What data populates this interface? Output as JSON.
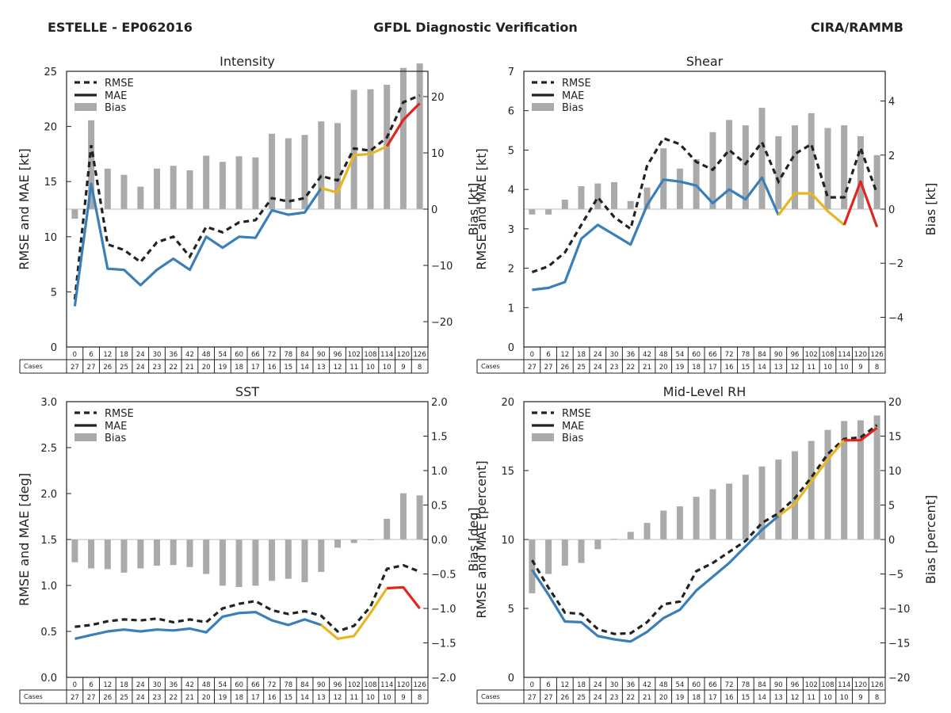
{
  "header": {
    "storm": "ESTELLE - EP062016",
    "title": "GFDL Diagnostic Verification",
    "org": "CIRA/RAMMB"
  },
  "colors": {
    "rmse": "#222222",
    "mae_early": "#3a7fb8",
    "mae_mid": "#e8b622",
    "mae_late": "#e0251f",
    "bias": "#aaaaaa"
  },
  "legend": {
    "rmse": "RMSE",
    "mae": "MAE",
    "bias": "Bias"
  },
  "table": {
    "cases_label": "Cases",
    "hours": [
      "0",
      "6",
      "12",
      "18",
      "24",
      "30",
      "36",
      "42",
      "48",
      "54",
      "60",
      "66",
      "72",
      "78",
      "84",
      "90",
      "96",
      "102",
      "108",
      "114",
      "120",
      "126"
    ],
    "cases": [
      "27",
      "27",
      "26",
      "25",
      "24",
      "23",
      "22",
      "21",
      "20",
      "19",
      "18",
      "17",
      "16",
      "15",
      "14",
      "13",
      "12",
      "11",
      "10",
      "10",
      "9",
      "8"
    ]
  },
  "chart_data": [
    {
      "type": "line+bar",
      "title": "Intensity",
      "ylabel": "RMSE and MAE [kt]",
      "ylabel2": "Bias [kt]",
      "ylim": [
        0,
        25
      ],
      "yticks": [
        "0",
        "5",
        "10",
        "15",
        "20",
        "25"
      ],
      "y2lim": [
        -24.5,
        24.5
      ],
      "y2ticks": [
        "−20",
        "−10",
        "0",
        "10",
        "20"
      ],
      "x": [
        0,
        6,
        12,
        18,
        24,
        30,
        36,
        42,
        48,
        54,
        60,
        66,
        72,
        78,
        84,
        90,
        96,
        102,
        108,
        114,
        120,
        126
      ],
      "rmse": [
        4.3,
        18.3,
        9.3,
        8.8,
        7.7,
        9.5,
        10.0,
        8.2,
        10.9,
        10.4,
        11.3,
        11.5,
        13.5,
        13.2,
        13.5,
        15.5,
        15.1,
        18.0,
        17.8,
        19.0,
        22.2,
        22.8
      ],
      "mae": [
        3.7,
        14.8,
        7.1,
        7.0,
        5.6,
        7.0,
        8.0,
        7.0,
        10.0,
        9.0,
        10.0,
        9.9,
        12.4,
        12.0,
        12.2,
        14.4,
        14.0,
        17.4,
        17.5,
        18.2,
        20.6,
        22.1
      ],
      "bias": [
        -1.7,
        15.8,
        7.2,
        6.1,
        4.0,
        7.2,
        7.7,
        6.9,
        9.5,
        8.4,
        9.4,
        9.2,
        13.4,
        12.6,
        13.2,
        15.6,
        15.3,
        21.2,
        21.3,
        22.1,
        25.1,
        25.9
      ]
    },
    {
      "type": "line+bar",
      "title": "Shear",
      "ylabel": "RMSE and MAE [kt]",
      "ylabel2": "Bias [kt]",
      "ylim": [
        0,
        7
      ],
      "yticks": [
        "0",
        "1",
        "2",
        "3",
        "4",
        "5",
        "6",
        "7"
      ],
      "y2lim": [
        -5.1,
        5.1
      ],
      "y2ticks": [
        "−4",
        "−2",
        "0",
        "2",
        "4"
      ],
      "x": [
        0,
        6,
        12,
        18,
        24,
        30,
        36,
        42,
        48,
        54,
        60,
        66,
        72,
        78,
        84,
        90,
        96,
        102,
        108,
        114,
        120,
        126
      ],
      "rmse": [
        1.9,
        2.05,
        2.4,
        3.1,
        3.8,
        3.3,
        3.0,
        4.6,
        5.3,
        5.15,
        4.7,
        4.5,
        5.0,
        4.65,
        5.2,
        4.2,
        4.9,
        5.15,
        3.8,
        3.8,
        5.05,
        3.9
      ],
      "mae": [
        1.45,
        1.5,
        1.65,
        2.75,
        3.1,
        2.85,
        2.6,
        3.6,
        4.25,
        4.2,
        4.1,
        3.65,
        4.0,
        3.75,
        4.3,
        3.35,
        3.9,
        3.9,
        3.45,
        3.1,
        4.2,
        3.05
      ],
      "bias": [
        -0.2,
        -0.2,
        0.35,
        0.85,
        0.95,
        1.0,
        0.3,
        0.8,
        2.25,
        1.5,
        1.85,
        2.85,
        3.3,
        3.1,
        3.75,
        2.7,
        3.1,
        3.55,
        3.0,
        3.1,
        2.7,
        2.0
      ]
    },
    {
      "type": "line+bar",
      "title": "SST",
      "ylabel": "RMSE and MAE [deg]",
      "ylabel2": "Bias [deg]",
      "ylim": [
        0,
        3.0
      ],
      "yticks": [
        "0.0",
        "0.5",
        "1.0",
        "1.5",
        "2.0",
        "2.5",
        "3.0"
      ],
      "y2lim": [
        -2.0,
        2.0
      ],
      "y2ticks": [
        "−2.0",
        "−1.5",
        "−1.0",
        "−0.5",
        "0.0",
        "0.5",
        "1.0",
        "1.5",
        "2.0"
      ],
      "x": [
        0,
        6,
        12,
        18,
        24,
        30,
        36,
        42,
        48,
        54,
        60,
        66,
        72,
        78,
        84,
        90,
        96,
        102,
        108,
        114,
        120,
        126
      ],
      "rmse": [
        0.55,
        0.57,
        0.61,
        0.63,
        0.62,
        0.64,
        0.6,
        0.63,
        0.6,
        0.75,
        0.8,
        0.83,
        0.73,
        0.69,
        0.72,
        0.67,
        0.5,
        0.56,
        0.77,
        1.18,
        1.22,
        1.15
      ],
      "mae": [
        0.42,
        0.46,
        0.5,
        0.52,
        0.5,
        0.52,
        0.51,
        0.53,
        0.49,
        0.66,
        0.7,
        0.71,
        0.62,
        0.57,
        0.63,
        0.57,
        0.42,
        0.45,
        0.7,
        0.97,
        0.98,
        0.75
      ],
      "bias": [
        -0.33,
        -0.42,
        -0.43,
        -0.48,
        -0.42,
        -0.38,
        -0.37,
        -0.4,
        -0.5,
        -0.67,
        -0.69,
        -0.67,
        -0.6,
        -0.57,
        -0.62,
        -0.47,
        -0.12,
        -0.05,
        -0.01,
        0.3,
        0.67,
        0.64
      ]
    },
    {
      "type": "line+bar",
      "title": "Mid-Level RH",
      "ylabel": "RMSE and MAE [percent]",
      "ylabel2": "Bias [percent]",
      "ylim": [
        0,
        20
      ],
      "yticks": [
        "0",
        "5",
        "10",
        "15",
        "20"
      ],
      "y2lim": [
        -20,
        20
      ],
      "y2ticks": [
        "−20",
        "−15",
        "−10",
        "−5",
        "0",
        "5",
        "10",
        "15",
        "20"
      ],
      "x": [
        0,
        6,
        12,
        18,
        24,
        30,
        36,
        42,
        48,
        54,
        60,
        66,
        72,
        78,
        84,
        90,
        96,
        102,
        108,
        114,
        120,
        126
      ],
      "rmse": [
        8.5,
        6.5,
        4.7,
        4.6,
        3.5,
        3.15,
        3.2,
        4.0,
        5.3,
        5.5,
        7.7,
        8.3,
        9.1,
        9.9,
        11.2,
        11.9,
        13.0,
        14.5,
        16.2,
        17.3,
        17.4,
        18.3
      ],
      "mae": [
        7.8,
        6.0,
        4.05,
        4.0,
        3.0,
        2.75,
        2.6,
        3.3,
        4.3,
        4.9,
        6.3,
        7.3,
        8.3,
        9.5,
        10.7,
        11.7,
        12.6,
        14.2,
        15.8,
        17.2,
        17.2,
        18.1
      ],
      "bias": [
        -7.8,
        -5.0,
        -3.8,
        -3.4,
        -1.4,
        0.1,
        1.1,
        2.4,
        4.2,
        4.8,
        6.2,
        7.3,
        8.1,
        9.4,
        10.6,
        11.6,
        12.8,
        14.3,
        15.9,
        17.2,
        17.3,
        18.0
      ]
    }
  ]
}
